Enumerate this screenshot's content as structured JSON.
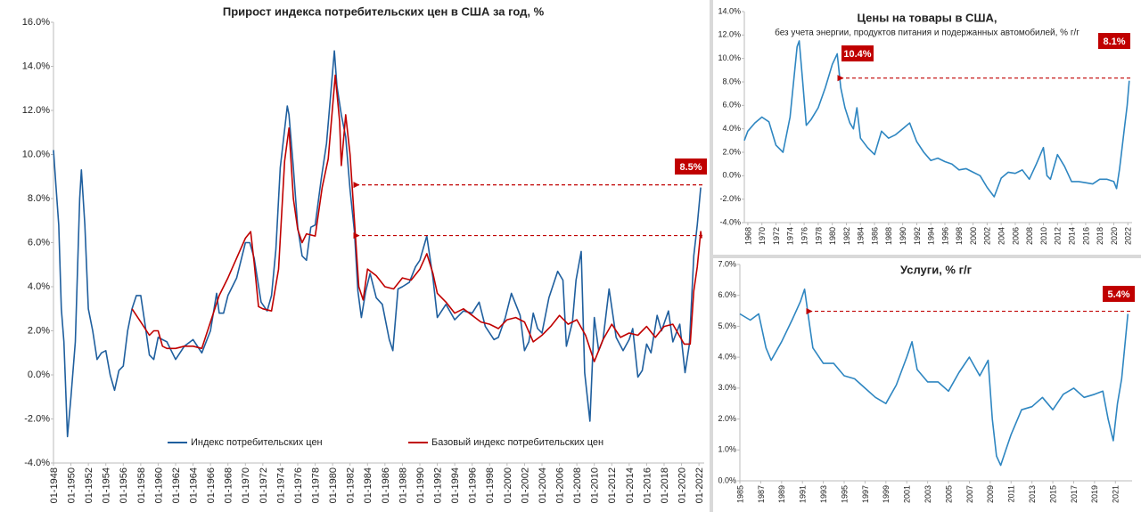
{
  "chart_data": [
    {
      "type": "line",
      "title": "Прирост индекса потребительских цен  в США за год, %",
      "series": [
        {
          "name": "Индекс потребительских цен",
          "color": "#1f5f9e",
          "x": [
            1948,
            1948.3,
            1948.6,
            1948.9,
            1949.2,
            1949.6,
            1950,
            1950.5,
            1951,
            1951.2,
            1951.6,
            1952,
            1952.5,
            1953,
            1953.5,
            1954,
            1954.5,
            1955,
            1955.5,
            1956,
            1956.5,
            1957,
            1957.5,
            1958,
            1958.5,
            1959,
            1959.5,
            1960,
            1961,
            1962,
            1963,
            1964,
            1965,
            1966,
            1966.7,
            1967,
            1967.5,
            1968,
            1969,
            1970,
            1970.5,
            1971,
            1971.8,
            1972.5,
            1973,
            1973.5,
            1974,
            1974.8,
            1975,
            1975.5,
            1976,
            1976.5,
            1977,
            1977.5,
            1978,
            1978.7,
            1979.3,
            1980.2,
            1980.5,
            1981,
            1981.5,
            1982,
            1982.5,
            1982.9,
            1983.3,
            1983.8,
            1984.3,
            1985,
            1985.7,
            1986.5,
            1986.9,
            1987.5,
            1988,
            1988.8,
            1989.5,
            1990,
            1990.8,
            1991.5,
            1992,
            1993,
            1994,
            1995,
            1996,
            1996.8,
            1997.5,
            1998.5,
            1999,
            1999.8,
            2000.5,
            2001.5,
            2002,
            2002.5,
            2003,
            2003.5,
            2004,
            2004.8,
            2005.8,
            2006.4,
            2006.8,
            2007.5,
            2007.9,
            2008.5,
            2008.9,
            2009.5,
            2010,
            2010.5,
            2011,
            2011.7,
            2012.5,
            2013.3,
            2014,
            2014.4,
            2015,
            2015.5,
            2016,
            2016.5,
            2017.2,
            2017.7,
            2018.5,
            2019,
            2019.8,
            2020.4,
            2020.9,
            2021.4,
            2021.8,
            2022.2
          ],
          "values": [
            10.2,
            8.5,
            6.8,
            3.0,
            1.5,
            -2.8,
            -1.0,
            1.5,
            8.0,
            9.3,
            6.8,
            3.0,
            2.0,
            0.7,
            1.0,
            1.1,
            0.0,
            -0.7,
            0.2,
            0.4,
            2.0,
            3.0,
            3.6,
            3.6,
            2.3,
            0.9,
            0.7,
            1.7,
            1.5,
            0.7,
            1.3,
            1.6,
            1.0,
            2.0,
            3.7,
            2.8,
            2.8,
            3.6,
            4.4,
            6.0,
            6.0,
            5.3,
            3.3,
            2.9,
            3.6,
            5.7,
            9.4,
            12.2,
            11.8,
            9.4,
            6.7,
            5.4,
            5.2,
            6.7,
            6.8,
            8.9,
            10.5,
            14.7,
            13.1,
            11.8,
            10.8,
            8.4,
            6.5,
            3.8,
            2.6,
            3.8,
            4.6,
            3.5,
            3.2,
            1.6,
            1.1,
            3.9,
            4.0,
            4.2,
            4.9,
            5.2,
            6.3,
            4.4,
            2.6,
            3.2,
            2.5,
            2.9,
            2.8,
            3.3,
            2.2,
            1.6,
            1.7,
            2.6,
            3.7,
            2.7,
            1.1,
            1.5,
            2.8,
            2.1,
            1.9,
            3.5,
            4.7,
            4.3,
            1.3,
            2.4,
            4.3,
            5.6,
            0.1,
            -2.1,
            2.6,
            1.1,
            1.6,
            3.9,
            1.7,
            1.1,
            1.6,
            2.1,
            -0.1,
            0.2,
            1.4,
            1.0,
            2.7,
            2.0,
            2.9,
            1.5,
            2.3,
            0.1,
            1.4,
            5.4,
            6.8,
            8.5
          ]
        },
        {
          "name": "Базовый индекс потребительских цен",
          "color": "#c00000",
          "x": [
            1957,
            1958,
            1959,
            1959.5,
            1960,
            1960.5,
            1961,
            1962,
            1963,
            1964,
            1965,
            1966,
            1967,
            1968,
            1969,
            1970,
            1970.6,
            1971,
            1971.5,
            1972,
            1973,
            1973.8,
            1974.5,
            1975,
            1975.5,
            1976,
            1976.5,
            1977,
            1978,
            1978.8,
            1979.5,
            1980.3,
            1980.8,
            1981,
            1981.5,
            1982,
            1982.5,
            1983,
            1983.5,
            1984,
            1985,
            1986,
            1987,
            1988,
            1989,
            1990,
            1990.8,
            1991.5,
            1992,
            1993,
            1994,
            1995,
            1996,
            1997,
            1998,
            1999,
            2000,
            2001,
            2002,
            2003,
            2004,
            2005,
            2006,
            2007,
            2008,
            2009,
            2010,
            2011,
            2012,
            2013,
            2014,
            2015,
            2016,
            2017,
            2018,
            2019,
            2020.3,
            2021,
            2021.4,
            2021.8,
            2022.2,
            2022.3
          ],
          "values": [
            3.0,
            2.4,
            1.8,
            2.0,
            2.0,
            1.3,
            1.2,
            1.2,
            1.3,
            1.3,
            1.2,
            2.4,
            3.6,
            4.4,
            5.3,
            6.2,
            6.5,
            5.1,
            3.1,
            3.0,
            2.9,
            4.8,
            9.7,
            11.2,
            8.0,
            6.6,
            6.0,
            6.4,
            6.3,
            8.5,
            9.8,
            13.6,
            11.5,
            9.5,
            11.8,
            10.0,
            7.0,
            4.0,
            3.4,
            4.8,
            4.5,
            4.0,
            3.9,
            4.4,
            4.3,
            4.8,
            5.5,
            4.6,
            3.7,
            3.3,
            2.8,
            3.0,
            2.7,
            2.4,
            2.3,
            2.1,
            2.5,
            2.6,
            2.4,
            1.5,
            1.8,
            2.2,
            2.7,
            2.3,
            2.5,
            1.8,
            0.6,
            1.6,
            2.3,
            1.7,
            1.9,
            1.8,
            2.2,
            1.7,
            2.2,
            2.3,
            1.4,
            1.4,
            3.8,
            4.9,
            6.5,
            6.2
          ]
        }
      ],
      "xlim": [
        1948,
        2022.6
      ],
      "xticks": [
        {
          "value": 1948,
          "label": "01-1948"
        },
        {
          "value": 1950,
          "label": "01-1950"
        },
        {
          "value": 1952,
          "label": "01-1952"
        },
        {
          "value": 1954,
          "label": "01-1954"
        },
        {
          "value": 1956,
          "label": "01-1956"
        },
        {
          "value": 1958,
          "label": "01-1958"
        },
        {
          "value": 1960,
          "label": "01-1960"
        },
        {
          "value": 1962,
          "label": "01-1962"
        },
        {
          "value": 1964,
          "label": "01-1964"
        },
        {
          "value": 1966,
          "label": "01-1966"
        },
        {
          "value": 1968,
          "label": "01-1968"
        },
        {
          "value": 1970,
          "label": "01-1970"
        },
        {
          "value": 1972,
          "label": "01-1972"
        },
        {
          "value": 1974,
          "label": "01-1974"
        },
        {
          "value": 1976,
          "label": "01-1976"
        },
        {
          "value": 1978,
          "label": "01-1978"
        },
        {
          "value": 1980,
          "label": "01-1980"
        },
        {
          "value": 1982,
          "label": "01-1982"
        },
        {
          "value": 1984,
          "label": "01-1984"
        },
        {
          "value": 1986,
          "label": "01-1986"
        },
        {
          "value": 1988,
          "label": "01-1988"
        },
        {
          "value": 1990,
          "label": "01-1990"
        },
        {
          "value": 1992,
          "label": "01-1992"
        },
        {
          "value": 1994,
          "label": "01-1994"
        },
        {
          "value": 1996,
          "label": "01-1996"
        },
        {
          "value": 1998,
          "label": "01-1998"
        },
        {
          "value": 2000,
          "label": "01-2000"
        },
        {
          "value": 2002,
          "label": "01-2002"
        },
        {
          "value": 2004,
          "label": "01-2004"
        },
        {
          "value": 2006,
          "label": "01-2006"
        },
        {
          "value": 2008,
          "label": "01-2008"
        },
        {
          "value": 2010,
          "label": "01-2010"
        },
        {
          "value": 2012,
          "label": "01-2012"
        },
        {
          "value": 2014,
          "label": "01-2014"
        },
        {
          "value": 2016,
          "label": "01-2016"
        },
        {
          "value": 2018,
          "label": "01-2018"
        },
        {
          "value": 2020,
          "label": "01-2020"
        },
        {
          "value": 2022,
          "label": "01-2022"
        }
      ],
      "ylim": [
        -4,
        16
      ],
      "yticks": [
        {
          "value": -4,
          "label": "-4.0%"
        },
        {
          "value": -2,
          "label": "-2.0%"
        },
        {
          "value": 0,
          "label": "0.0%"
        },
        {
          "value": 2,
          "label": "2.0%"
        },
        {
          "value": 4,
          "label": "4.0%"
        },
        {
          "value": 6,
          "label": "6.0%"
        },
        {
          "value": 8,
          "label": "8.0%"
        },
        {
          "value": 10,
          "label": "10.0%"
        },
        {
          "value": 12,
          "label": "12.0%"
        },
        {
          "value": 14,
          "label": "14.0%"
        },
        {
          "value": 16,
          "label": "16.0%"
        }
      ],
      "legend": "bottom",
      "annotations": [
        "8.5%"
      ]
    },
    {
      "type": "line",
      "title": "Цены на товары в США,",
      "subtitle": "без учета энергии, продуктов питания и подержанных автомобилей, % г/г",
      "series": [
        {
          "name": "Товары",
          "color": "#2e86c1",
          "x": [
            1967.5,
            1968,
            1969,
            1970,
            1971,
            1972,
            1973,
            1974,
            1975,
            1975.3,
            1975.8,
            1976.3,
            1977,
            1978,
            1979,
            1980,
            1980.7,
            1981.2,
            1981.8,
            1982.5,
            1983,
            1983.5,
            1984,
            1985,
            1986,
            1987,
            1988,
            1989,
            1990,
            1991,
            1992,
            1993,
            1994,
            1995,
            1996,
            1997,
            1998,
            1999,
            2000,
            2001,
            2002,
            2003,
            2004,
            2005,
            2006,
            2007,
            2008,
            2009,
            2010,
            2010.5,
            2011,
            2012,
            2013,
            2014,
            2015,
            2016,
            2017,
            2018,
            2019,
            2020,
            2020.4,
            2020.8,
            2021,
            2021.5,
            2021.9,
            2022.2
          ],
          "values": [
            3.0,
            3.8,
            4.5,
            5.0,
            4.6,
            2.6,
            2.0,
            5.0,
            11.0,
            11.5,
            8.0,
            4.3,
            4.8,
            5.8,
            7.5,
            9.5,
            10.4,
            7.5,
            5.8,
            4.5,
            4.0,
            5.8,
            3.2,
            2.4,
            1.8,
            3.8,
            3.2,
            3.5,
            4.0,
            4.5,
            2.9,
            2.0,
            1.3,
            1.5,
            1.2,
            1.0,
            0.5,
            0.6,
            0.3,
            0.0,
            -1.0,
            -1.8,
            -0.2,
            0.3,
            0.2,
            0.5,
            -0.3,
            1.0,
            2.4,
            0.0,
            -0.3,
            1.8,
            0.8,
            -0.5,
            -0.5,
            -0.6,
            -0.7,
            -0.3,
            -0.3,
            -0.5,
            -1.1,
            0.5,
            1.5,
            4.0,
            6.0,
            8.1
          ]
        }
      ],
      "xlim": [
        1967.5,
        2022.6
      ],
      "xticks": [
        1968,
        1970,
        1972,
        1974,
        1976,
        1978,
        1980,
        1982,
        1984,
        1986,
        1988,
        1990,
        1992,
        1994,
        1996,
        1998,
        2000,
        2002,
        2004,
        2006,
        2008,
        2010,
        2012,
        2014,
        2016,
        2018,
        2020,
        2022
      ],
      "ylim": [
        -4,
        14
      ],
      "yticks": [
        {
          "value": -4,
          "label": "-4.0%"
        },
        {
          "value": -2,
          "label": "-2.0%"
        },
        {
          "value": 0,
          "label": "0.0%"
        },
        {
          "value": 2,
          "label": "2.0%"
        },
        {
          "value": 4,
          "label": "4.0%"
        },
        {
          "value": 6,
          "label": "6.0%"
        },
        {
          "value": 8,
          "label": "8.0%"
        },
        {
          "value": 10,
          "label": "10.0%"
        },
        {
          "value": 12,
          "label": "12.0%"
        },
        {
          "value": 14,
          "label": "14.0%"
        }
      ],
      "annotations": [
        "10.4%",
        "8.1%"
      ]
    },
    {
      "type": "line",
      "title": "Услуги, % г/г",
      "series": [
        {
          "name": "Услуги",
          "color": "#2e86c1",
          "x": [
            1985,
            1986,
            1986.8,
            1987.5,
            1988,
            1989,
            1990,
            1990.8,
            1991.2,
            1991.7,
            1992,
            1993,
            1994,
            1995,
            1996,
            1997,
            1998,
            1999,
            2000,
            2001,
            2001.5,
            2002,
            2003,
            2004,
            2005,
            2006,
            2007,
            2008,
            2008.8,
            2009.2,
            2009.6,
            2010,
            2010.5,
            2011,
            2012,
            2013,
            2014,
            2015,
            2016,
            2017,
            2018,
            2019,
            2019.8,
            2020.3,
            2020.8,
            2021.2,
            2021.6,
            2022.2
          ],
          "values": [
            5.4,
            5.2,
            5.4,
            4.3,
            3.9,
            4.5,
            5.2,
            5.8,
            6.2,
            5.0,
            4.3,
            3.8,
            3.8,
            3.4,
            3.3,
            3.0,
            2.7,
            2.5,
            3.1,
            4.0,
            4.5,
            3.6,
            3.2,
            3.2,
            2.9,
            3.5,
            4.0,
            3.4,
            3.9,
            2.0,
            0.8,
            0.5,
            1.0,
            1.5,
            2.3,
            2.4,
            2.7,
            2.3,
            2.8,
            3.0,
            2.7,
            2.8,
            2.9,
            2.0,
            1.3,
            2.5,
            3.3,
            5.4
          ]
        }
      ],
      "xlim": [
        1985,
        2022.6
      ],
      "xticks": [
        1985,
        1987,
        1989,
        1991,
        1993,
        1995,
        1997,
        1999,
        2001,
        2003,
        2005,
        2007,
        2009,
        2011,
        2013,
        2015,
        2017,
        2019,
        2021
      ],
      "ylim": [
        0,
        7
      ],
      "yticks": [
        {
          "value": 0,
          "label": "0.0%"
        },
        {
          "value": 1,
          "label": "1.0%"
        },
        {
          "value": 2,
          "label": "2.0%"
        },
        {
          "value": 3,
          "label": "3.0%"
        },
        {
          "value": 4,
          "label": "4.0%"
        },
        {
          "value": 5,
          "label": "5.0%"
        },
        {
          "value": 6,
          "label": "6.0%"
        },
        {
          "value": 7,
          "label": "7.0%"
        }
      ],
      "annotations": [
        "5.4%"
      ]
    }
  ]
}
